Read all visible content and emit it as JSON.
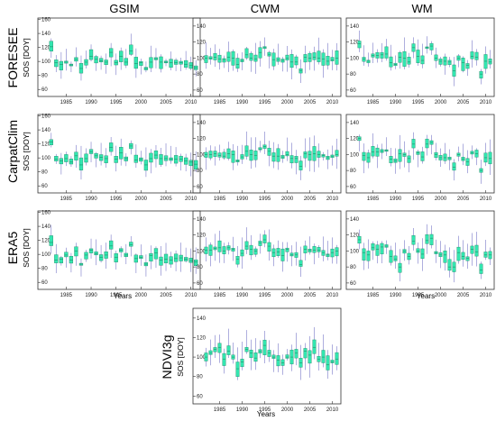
{
  "columns": [
    "GSIM",
    "CWM",
    "WM"
  ],
  "rows": [
    "FORESEE",
    "CarpatClim",
    "ERA5"
  ],
  "bottom_row": "NDVI3g",
  "ylabel": "SOS [DOY]",
  "xlabel": "Years",
  "colors": {
    "box": "#33e6b0",
    "box_edge": "#1f8a68",
    "whisker": "#8c8cd0",
    "axis": "#333333"
  },
  "chart_data": {
    "type": "boxplot",
    "x_ticks": [
      1985,
      1990,
      1995,
      2000,
      2005,
      2010
    ],
    "y_ticks": [
      60,
      80,
      100,
      120,
      140,
      160
    ],
    "xlim": [
      1981.5,
      2011.5
    ],
    "panels": [
      {
        "row": "FORESEE",
        "column": "GSIM",
        "ylim": [
          50,
          162
        ],
        "median": [
          121,
          98,
          96,
          99,
          95,
          103,
          90,
          99,
          107,
          103,
          101,
          99,
          113,
          98,
          107,
          99,
          115,
          97,
          98,
          90,
          99,
          104,
          99,
          99,
          98,
          98,
          98,
          96,
          94,
          91
        ]
      },
      {
        "row": "FORESEE",
        "column": "CWM",
        "ylim": [
          52,
          150
        ],
        "median": [
          100,
          100,
          101,
          99,
          98,
          101,
          100,
          92,
          97,
          104,
          100,
          99,
          107,
          113,
          104,
          98,
          98,
          97,
          100,
          95,
          95,
          84,
          101,
          100,
          101,
          100,
          99,
          96,
          98,
          100
        ]
      },
      {
        "row": "FORESEE",
        "column": "WM",
        "ylim": [
          52,
          150
        ],
        "median": [
          118,
          99,
          96,
          103,
          103,
          104,
          105,
          94,
          92,
          101,
          100,
          95,
          113,
          102,
          97,
          113,
          115,
          100,
          96,
          96,
          95,
          84,
          100,
          94,
          91,
          102,
          101,
          80,
          96,
          95
        ]
      },
      {
        "row": "CarpatClim",
        "column": "GSIM",
        "ylim": [
          50,
          162
        ],
        "median": [
          123,
          98,
          96,
          99,
          94,
          103,
          90,
          99,
          109,
          103,
          101,
          99,
          115,
          98,
          107,
          99,
          117,
          97,
          98,
          90,
          99,
          104,
          99,
          99,
          98,
          98,
          98,
          96,
          94,
          91
        ]
      },
      {
        "row": "CarpatClim",
        "column": "CWM",
        "ylim": [
          52,
          150
        ],
        "median": [
          100,
          100,
          101,
          99,
          98,
          101,
          100,
          92,
          97,
          104,
          100,
          99,
          107,
          110,
          104,
          98,
          98,
          97,
          100,
          95,
          95,
          85,
          101,
          100,
          101,
          100,
          99,
          96,
          98,
          100
        ]
      },
      {
        "row": "CarpatClim",
        "column": "WM",
        "ylim": [
          52,
          150
        ],
        "median": [
          120,
          99,
          96,
          103,
          103,
          104,
          105,
          94,
          92,
          101,
          100,
          95,
          113,
          102,
          97,
          113,
          115,
          100,
          96,
          96,
          95,
          84,
          100,
          94,
          91,
          102,
          101,
          80,
          96,
          95
        ]
      },
      {
        "row": "ERA5",
        "column": "GSIM",
        "ylim": [
          50,
          162
        ],
        "median": [
          117,
          92,
          93,
          99,
          92,
          105,
          86,
          99,
          106,
          101,
          96,
          99,
          112,
          96,
          106,
          99,
          114,
          94,
          96,
          86,
          98,
          102,
          92,
          93,
          92,
          94,
          95,
          93,
          91,
          89
        ]
      },
      {
        "row": "ERA5",
        "column": "CWM",
        "ylim": [
          52,
          150
        ],
        "median": [
          101,
          101,
          103,
          104,
          100,
          104,
          102,
          90,
          97,
          106,
          102,
          100,
          110,
          114,
          106,
          98,
          99,
          94,
          102,
          95,
          95,
          83,
          102,
          101,
          101,
          101,
          98,
          95,
          98,
          100
        ]
      },
      {
        "row": "ERA5",
        "column": "WM",
        "ylim": [
          52,
          150
        ],
        "median": [
          114,
          98,
          95,
          104,
          102,
          105,
          106,
          93,
          90,
          80,
          100,
          93,
          112,
          100,
          96,
          113,
          116,
          98,
          95,
          95,
          80,
          80,
          98,
          93,
          91,
          102,
          99,
          76,
          95,
          95
        ]
      },
      {
        "row": "NDVI3g",
        "column": "CWM",
        "ylim": [
          52,
          150
        ],
        "median": [
          100,
          104,
          108,
          110,
          98,
          106,
          100,
          88,
          95,
          108,
          104,
          99,
          106,
          112,
          104,
          100,
          97,
          94,
          100,
          100,
          104,
          94,
          106,
          102,
          110,
          98,
          100,
          92,
          95,
          98
        ]
      }
    ]
  }
}
